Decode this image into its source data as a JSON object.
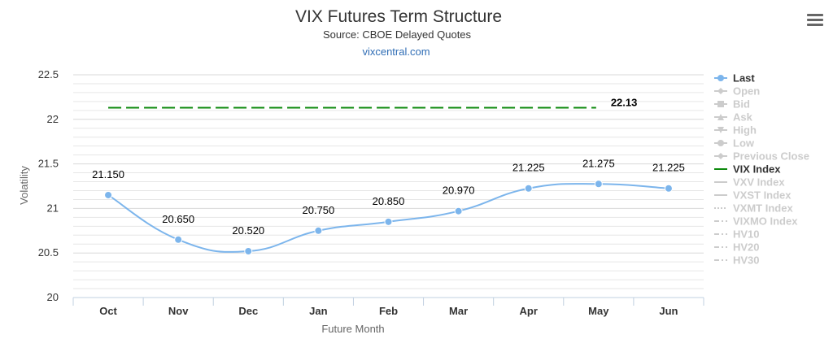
{
  "chart_data": {
    "type": "line",
    "title": "VIX Futures Term Structure",
    "subtitle": "Source: CBOE Delayed Quotes",
    "credit": "vixcentral.com",
    "xlabel": "Future Month",
    "ylabel": "Volatility",
    "categories": [
      "Oct",
      "Nov",
      "Dec",
      "Jan",
      "Feb",
      "Mar",
      "Apr",
      "May",
      "Jun"
    ],
    "ylim": [
      20,
      22.5
    ],
    "yticks": [
      "20",
      "20.5",
      "21",
      "21.5",
      "22",
      "22.5"
    ],
    "series": [
      {
        "name": "Last",
        "values": [
          21.15,
          20.65,
          20.52,
          20.75,
          20.85,
          20.97,
          21.225,
          21.275,
          21.225
        ],
        "labels": [
          "21.150",
          "20.650",
          "20.520",
          "20.750",
          "20.850",
          "20.970",
          "21.225",
          "21.275",
          "21.225"
        ],
        "color": "#7cb5ec",
        "smooth": true
      },
      {
        "name": "VIX Index",
        "value": 22.13,
        "label": "22.13",
        "color": "#0d8a0d",
        "dash": true,
        "x_from_index": 0,
        "x_to_index": 7
      }
    ],
    "legend": {
      "position": "right",
      "items": [
        {
          "name": "Last",
          "active": true,
          "symbol": "circle"
        },
        {
          "name": "Open",
          "active": false,
          "symbol": "diamond"
        },
        {
          "name": "Bid",
          "active": false,
          "symbol": "square"
        },
        {
          "name": "Ask",
          "active": false,
          "symbol": "triangle"
        },
        {
          "name": "High",
          "active": false,
          "symbol": "triangle-down"
        },
        {
          "name": "Low",
          "active": false,
          "symbol": "circle"
        },
        {
          "name": "Previous Close",
          "active": false,
          "symbol": "diamond"
        },
        {
          "name": "VIX Index",
          "active": true,
          "symbol": "line"
        },
        {
          "name": "VXV Index",
          "active": false,
          "symbol": "line"
        },
        {
          "name": "VXST Index",
          "active": false,
          "symbol": "line"
        },
        {
          "name": "VXMT Index",
          "active": false,
          "symbol": "dotted"
        },
        {
          "name": "VIXMO Index",
          "active": false,
          "symbol": "dashdot"
        },
        {
          "name": "HV10",
          "active": false,
          "symbol": "dashdot"
        },
        {
          "name": "HV20",
          "active": false,
          "symbol": "dashdot"
        },
        {
          "name": "HV30",
          "active": false,
          "symbol": "dashdot"
        }
      ],
      "active_color": "#333333",
      "inactive_color": "#cccccc"
    },
    "grid": true,
    "minor_grid": true,
    "gridline_color": "#e6e6e6"
  }
}
